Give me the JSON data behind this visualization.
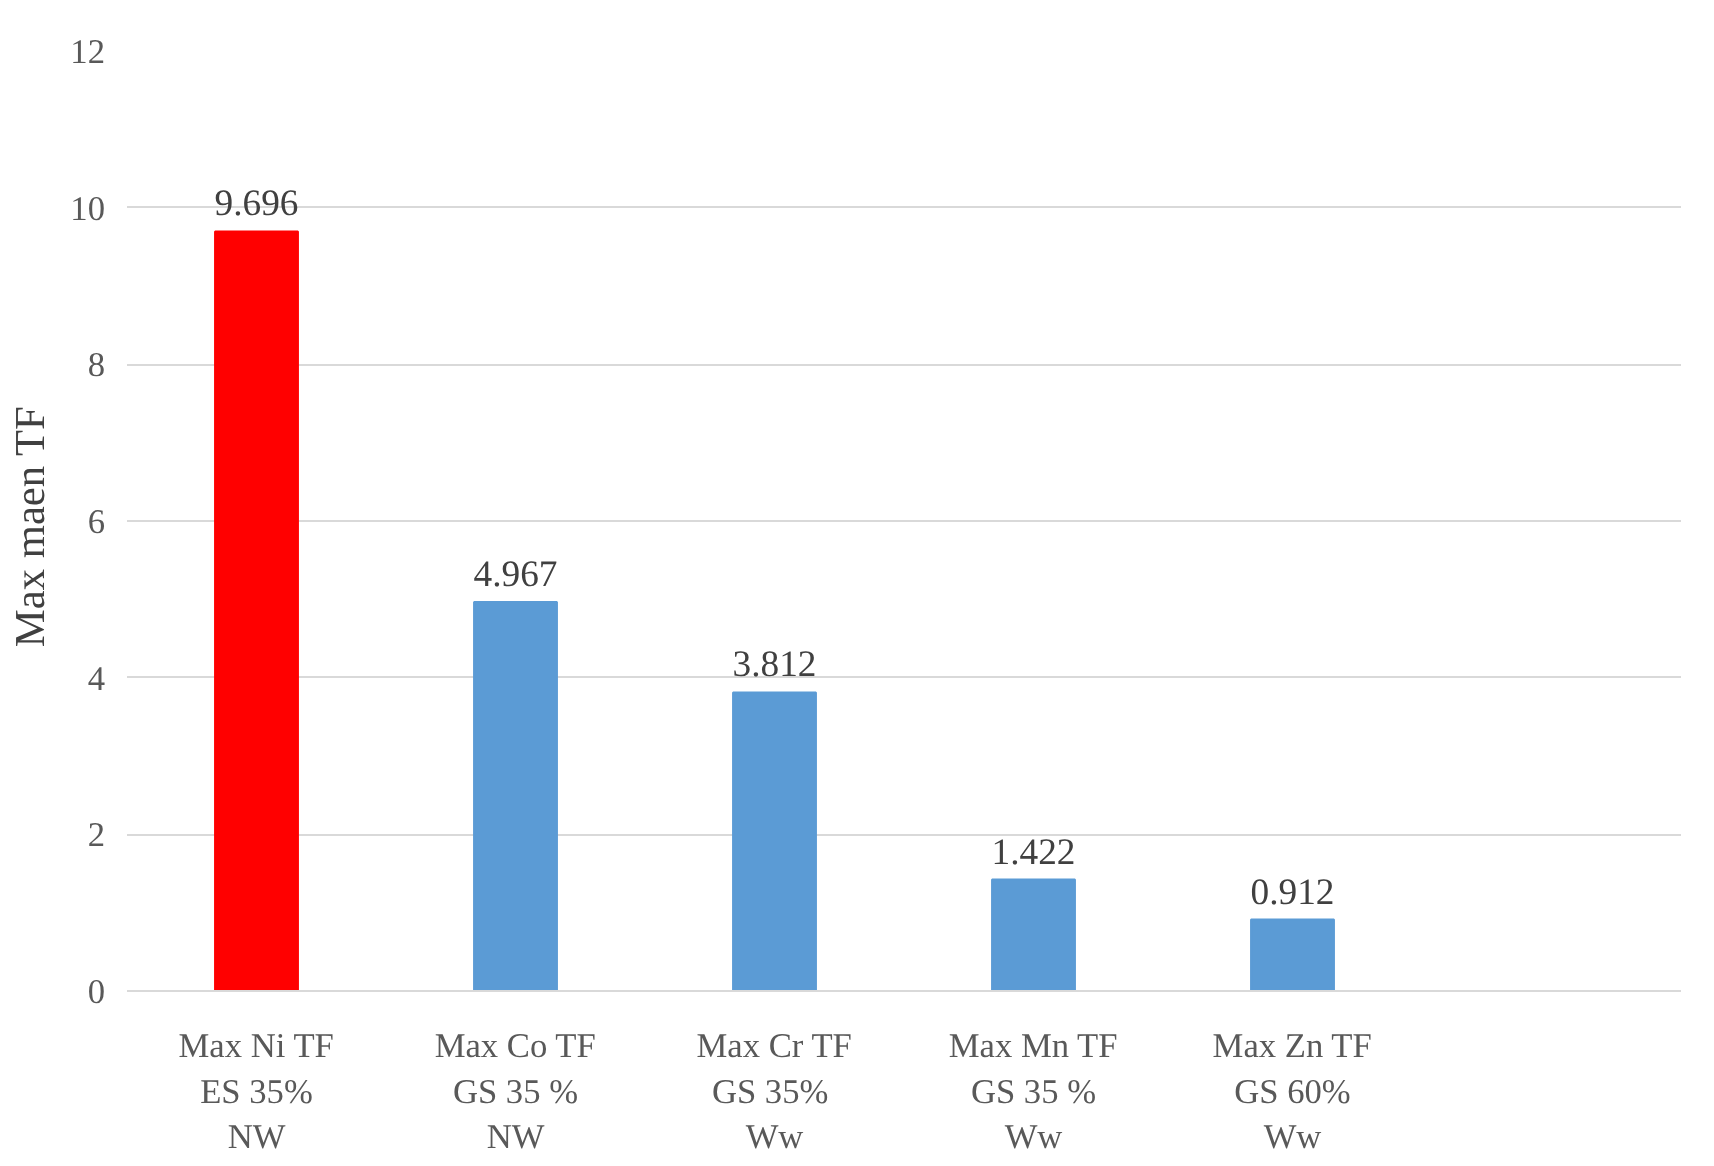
{
  "chart_data": {
    "type": "bar",
    "ylabel": "Max  maen TF",
    "categories": [
      "Max Ni TF\nES 35%\nNW",
      "Max Co TF\nGS 35 %\nNW",
      "Max Cr TF\nGS  35%\nWw",
      "Max Mn TF\nGS 35 %\nWw",
      "Max Zn TF\nGS 60%\nWw",
      null
    ],
    "values": [
      9.696,
      4.967,
      3.812,
      1.422,
      0.912,
      null
    ],
    "colors": [
      "#ff0000",
      "#5b9bd5",
      "#5b9bd5",
      "#5b9bd5",
      "#5b9bd5",
      "#5b9bd5"
    ],
    "ylim": [
      0,
      12
    ],
    "yticks": [
      0,
      2,
      4,
      6,
      8,
      10,
      12
    ],
    "grid": "y",
    "data_labels": true
  }
}
